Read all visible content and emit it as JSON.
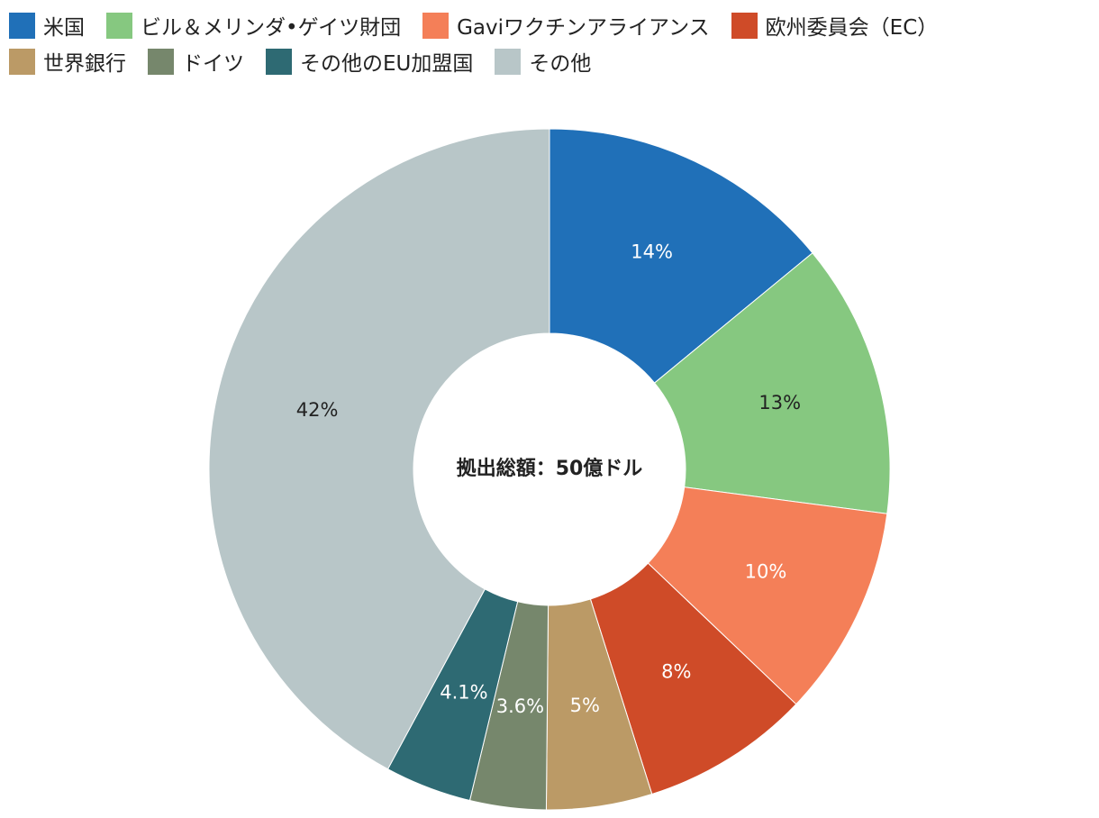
{
  "chart_data": {
    "type": "pie",
    "donut": true,
    "center_label": "拠出総額：50億ドル",
    "legend_position": "top-left",
    "categories": [
      "米国",
      "ビル＆メリンダ•ゲイツ財団",
      "Gaviワクチンアライアンス",
      "欧州委員会（EC）",
      "世界銀行",
      "ドイツ",
      "その他のEU加盟国",
      "その他"
    ],
    "values": [
      14,
      13,
      10,
      8,
      5,
      3.6,
      4.1,
      42
    ],
    "labels": [
      "14%",
      "13%",
      "10%",
      "8%",
      "5%",
      "3.6%",
      "4.1%",
      "42%"
    ],
    "colors": [
      "#2070b8",
      "#86c880",
      "#f47f58",
      "#cf4b28",
      "#bb9a66",
      "#76876c",
      "#2e6a73",
      "#b8c6c8"
    ],
    "label_colors": [
      "#ffffff",
      "#222222",
      "#ffffff",
      "#ffffff",
      "#ffffff",
      "#ffffff",
      "#ffffff",
      "#222222"
    ]
  }
}
